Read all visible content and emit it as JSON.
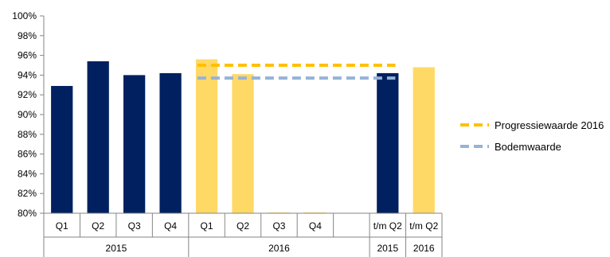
{
  "chart_data": {
    "type": "bar",
    "title": "",
    "xlabel": "",
    "ylabel": "",
    "ylim": [
      0.8,
      1.0
    ],
    "y_ticks": [
      "80%",
      "82%",
      "84%",
      "86%",
      "88%",
      "90%",
      "92%",
      "94%",
      "96%",
      "98%",
      "100%"
    ],
    "y_tick_values": [
      0.8,
      0.82,
      0.84,
      0.86,
      0.88,
      0.9,
      0.92,
      0.94,
      0.96,
      0.98,
      1.0
    ],
    "categories": [
      "Q1",
      "Q2",
      "Q3",
      "Q4",
      "Q1",
      "Q2",
      "Q3",
      "Q4",
      "",
      "t/m Q2",
      "t/m Q2"
    ],
    "groups": [
      {
        "label": "2015",
        "span": 4
      },
      {
        "label": "2016",
        "span": 5
      },
      {
        "label": "2015",
        "span": 1
      },
      {
        "label": "2016",
        "span": 1
      }
    ],
    "bars": [
      {
        "value": 0.929,
        "color": "#002060"
      },
      {
        "value": 0.954,
        "color": "#002060"
      },
      {
        "value": 0.94,
        "color": "#002060"
      },
      {
        "value": 0.942,
        "color": "#002060"
      },
      {
        "value": 0.956,
        "color": "#FFD966"
      },
      {
        "value": 0.941,
        "color": "#FFD966"
      },
      {
        "value": 0.8,
        "color": "#FFD966"
      },
      {
        "value": 0.8,
        "color": "#FFD966"
      },
      {
        "value": null,
        "color": "#FFD966"
      },
      {
        "value": 0.942,
        "color": "#002060"
      },
      {
        "value": 0.948,
        "color": "#FFD966"
      }
    ],
    "lines": [
      {
        "name": "Progressiewaarde 2016",
        "value": 0.95,
        "color": "#FFC000",
        "dashed": true,
        "from_index": 4,
        "to_index": 9
      },
      {
        "name": "Bodemwaarde",
        "value": 0.937,
        "color": "#95B3D7",
        "dashed": true,
        "from_index": 4,
        "to_index": 9
      }
    ],
    "legend_position": "right",
    "grid": false
  }
}
